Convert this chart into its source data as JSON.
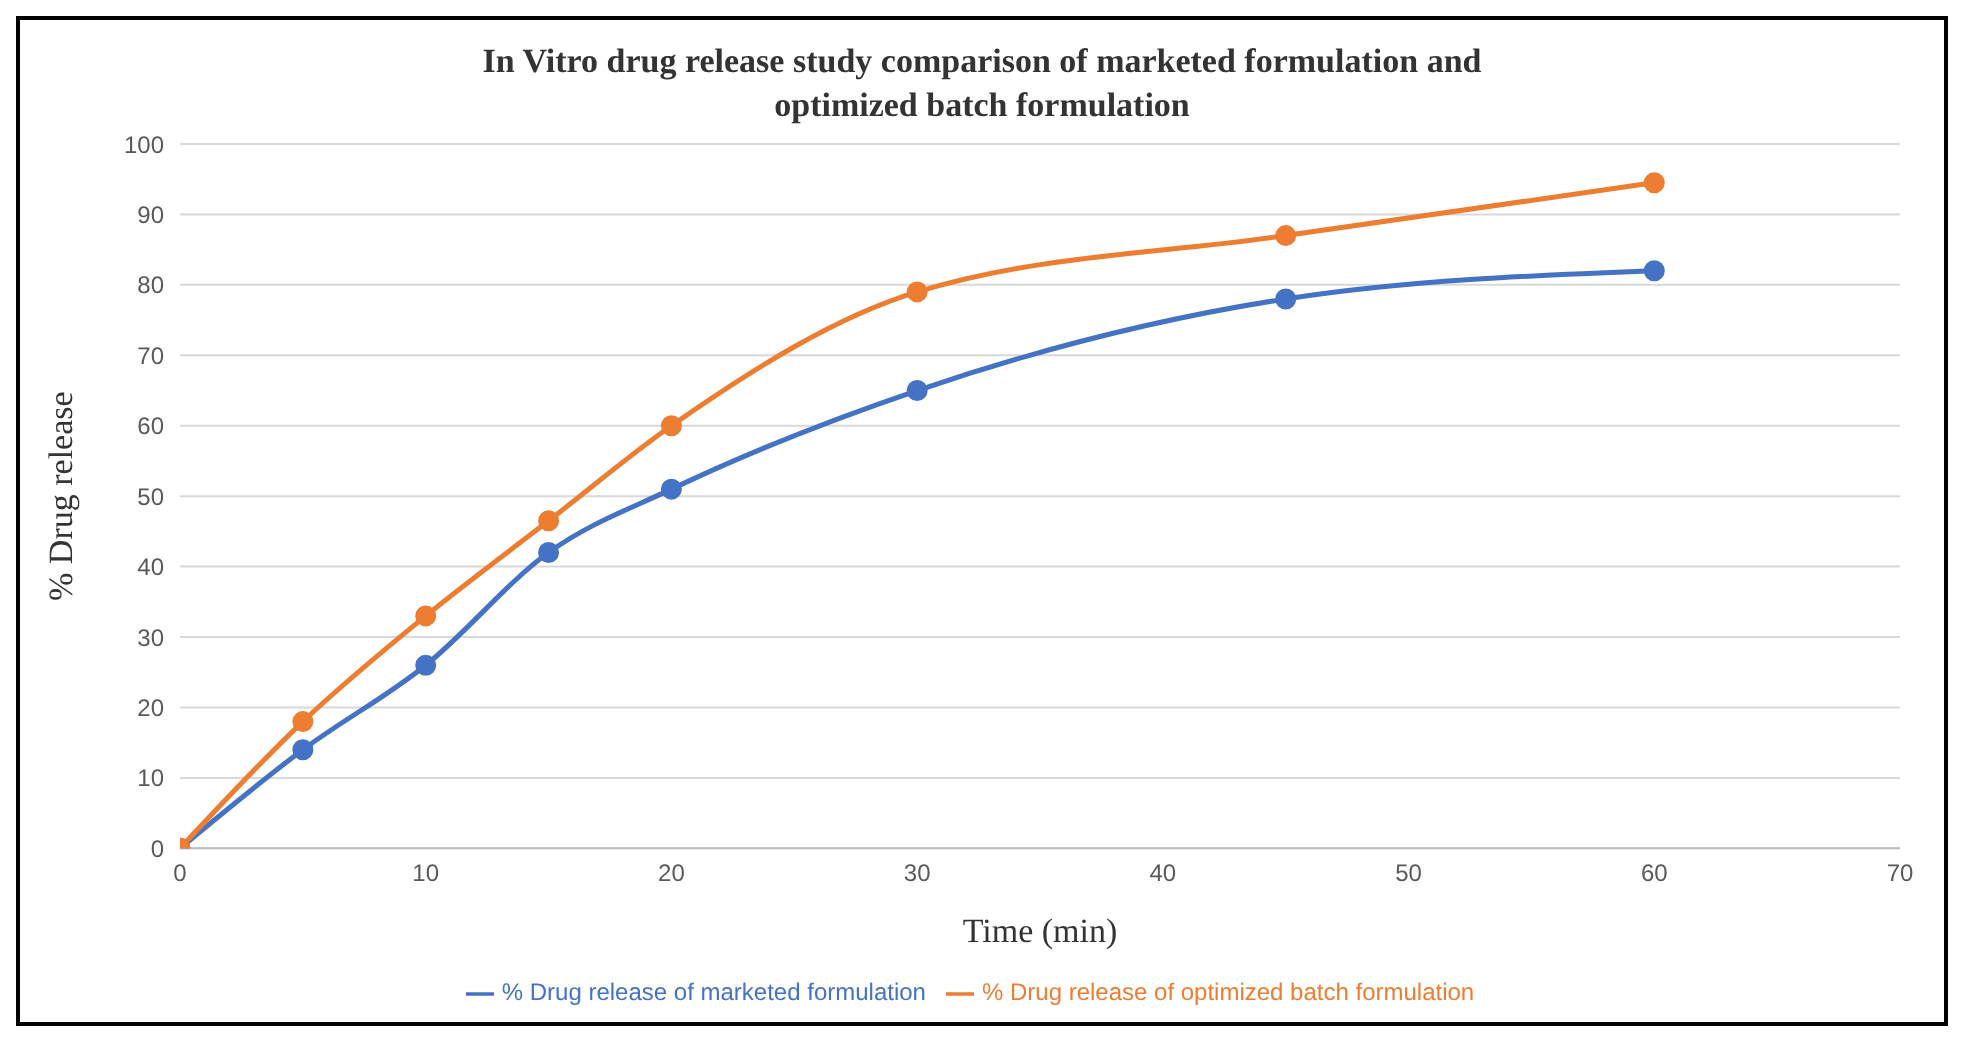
{
  "chart_data": {
    "type": "line",
    "title": "In Vitro drug release study comparison of marketed formulation and optimized batch formulation",
    "xlabel": "Time (min)",
    "ylabel": "% Drug release",
    "x": [
      0,
      5,
      10,
      15,
      20,
      30,
      45,
      60
    ],
    "series": [
      {
        "name": "% Drug release of marketed formulation",
        "color": "#4472c4",
        "values": [
          0,
          14,
          26,
          42,
          51,
          65,
          78,
          82
        ]
      },
      {
        "name": "% Drug release of optimized batch formulation",
        "color": "#ed7d31",
        "values": [
          0,
          18,
          33,
          46.5,
          60,
          79,
          87,
          94.5
        ]
      }
    ],
    "xlim": [
      0,
      70
    ],
    "xticks": [
      0,
      10,
      20,
      30,
      40,
      50,
      60,
      70
    ],
    "ylim": [
      0,
      100
    ],
    "yticks": [
      0,
      10,
      20,
      30,
      40,
      50,
      60,
      70,
      80,
      90,
      100
    ],
    "grid": "y",
    "legend": "bottom",
    "marker": "circle",
    "line_style": "solid"
  }
}
